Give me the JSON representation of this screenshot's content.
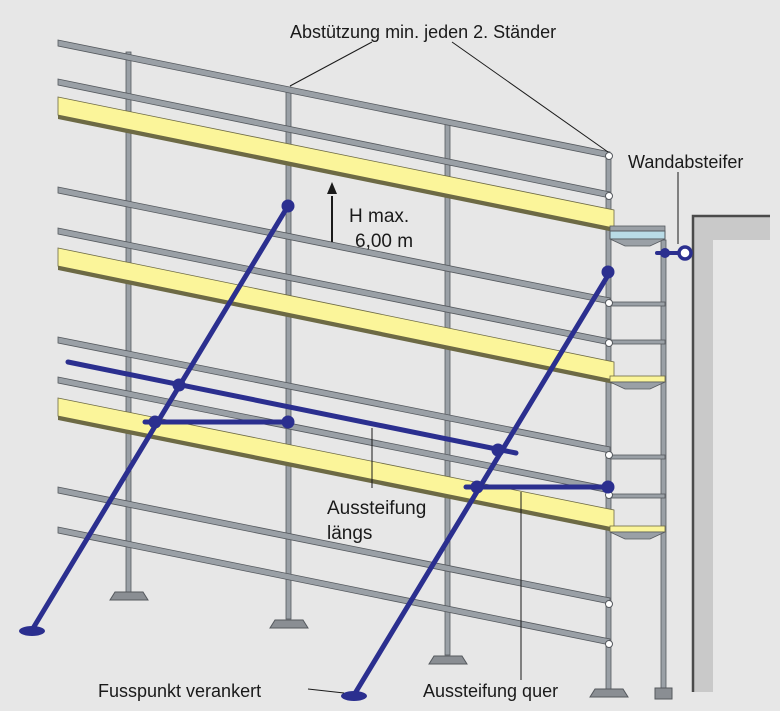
{
  "figure": {
    "background_color": "#e7e7e7",
    "colors": {
      "tube": "#9aa0a6",
      "tube_dark": "#55595e",
      "plank": "#fbf59a",
      "plank_edge": "#6d6a45",
      "brace": "#2b2f8f",
      "wall": "#c9c9c9",
      "bracket": "#b9dbe6",
      "text": "#1a1a1a"
    }
  },
  "labels": {
    "support_every_second_standard": "Abstützung min. jeden 2. Ständer",
    "wall_tie": "Wandabsteifer",
    "height_max_line1": "H max.",
    "height_max_line2": "6,00 m",
    "longitudinal_bracing_line1": "Aussteifung",
    "longitudinal_bracing_line2": "längs",
    "base_anchored": "Fusspunkt verankert",
    "transverse_bracing": "Aussteifung quer"
  }
}
